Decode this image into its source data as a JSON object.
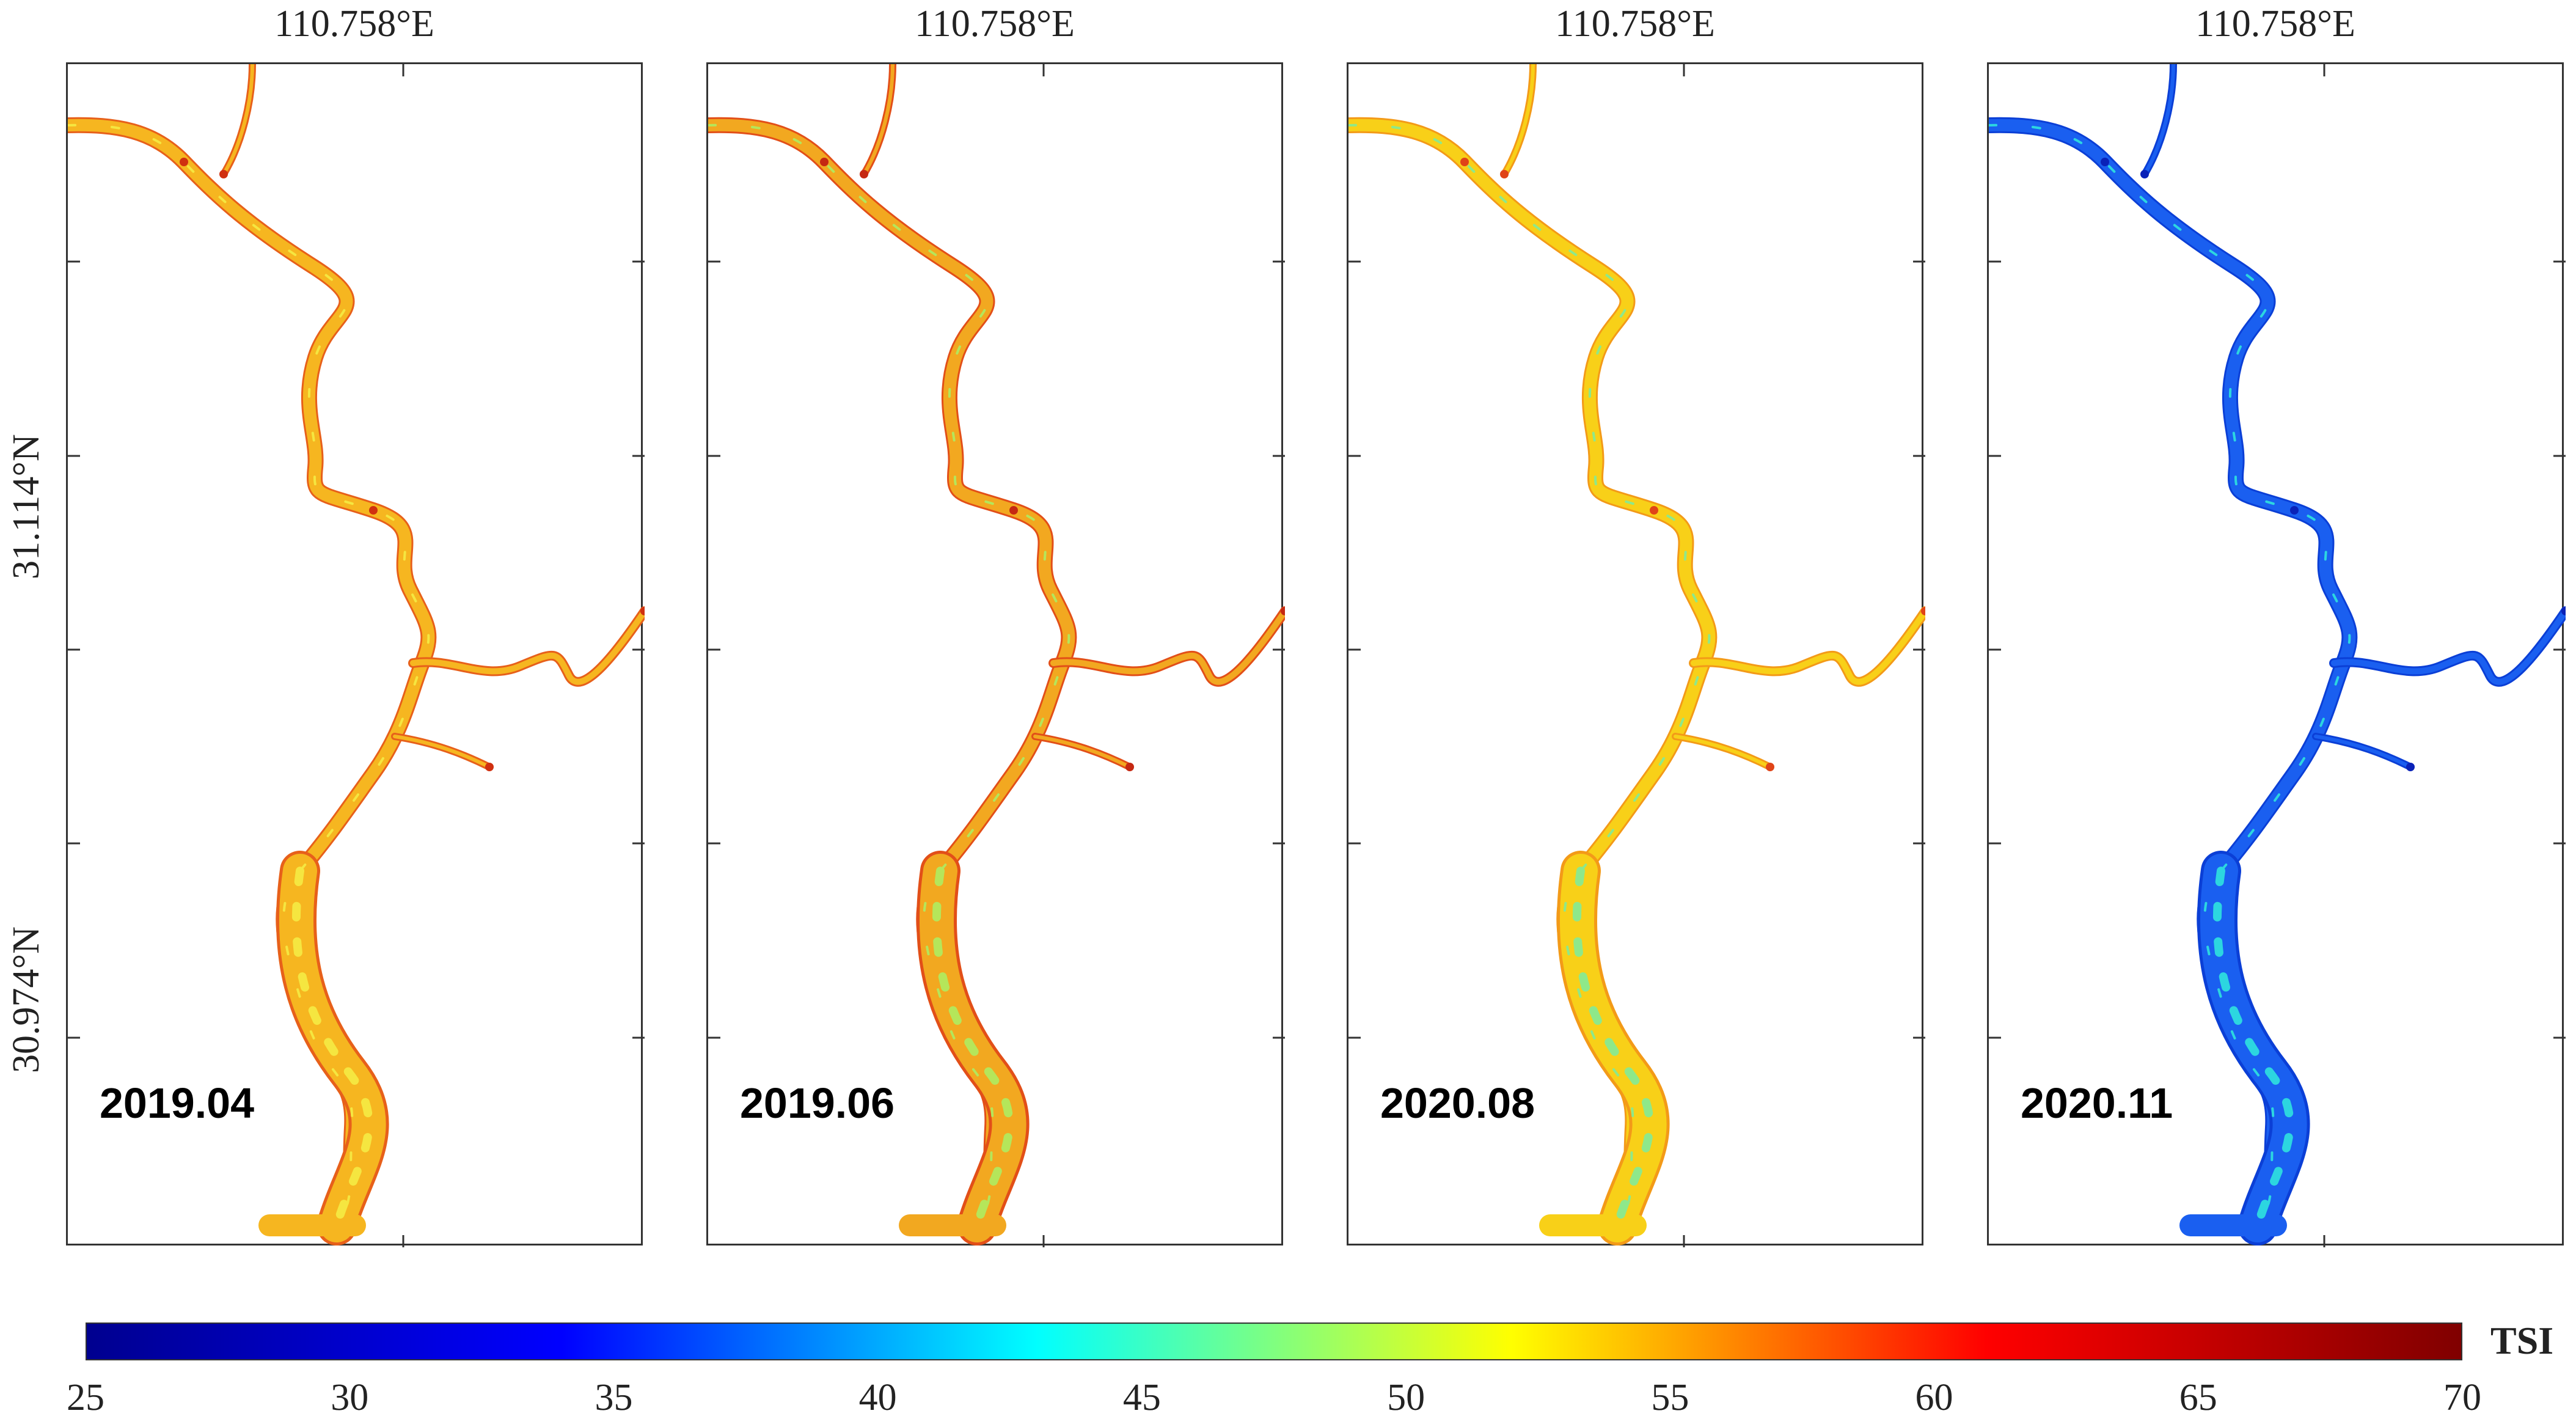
{
  "longitude_labels": [
    "110.758°E",
    "110.758°E",
    "110.758°E",
    "110.758°E"
  ],
  "latitude_labels": [
    "31.114°N",
    "30.974°N"
  ],
  "panels": [
    {
      "date": "2019.04",
      "main_color": "#f6b620",
      "edge_color": "#e7601a",
      "accent_color": "#f5e640",
      "tip_color": "#d03010"
    },
    {
      "date": "2019.06",
      "main_color": "#f2a820",
      "edge_color": "#e24f18",
      "accent_color": "#b5e65a",
      "tip_color": "#c52812"
    },
    {
      "date": "2020.08",
      "main_color": "#f8d018",
      "edge_color": "#f39a18",
      "accent_color": "#8ee88a",
      "tip_color": "#e04418"
    },
    {
      "date": "2020.11",
      "main_color": "#1a5ff0",
      "edge_color": "#0b3fd6",
      "accent_color": "#2cd6e0",
      "tip_color": "#0a22b8"
    }
  ],
  "colorbar": {
    "title": "TSI",
    "min": 25,
    "max": 70,
    "ticks": [
      "25",
      "30",
      "35",
      "40",
      "45",
      "50",
      "55",
      "60",
      "65",
      "70"
    ],
    "colormap": "jet",
    "colors": [
      "#00008f",
      "#0000ff",
      "#00ffff",
      "#ffff00",
      "#ff0000",
      "#800000"
    ]
  }
}
